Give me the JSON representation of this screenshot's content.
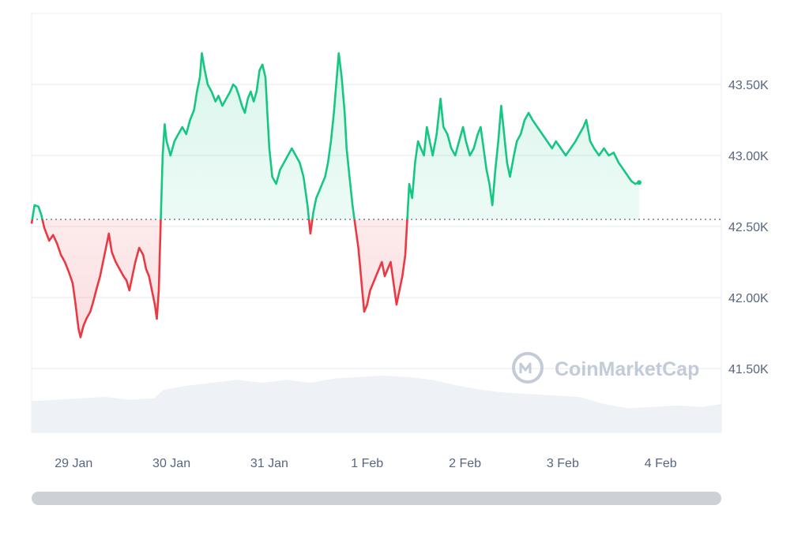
{
  "watermark": {
    "text": "CoinMarketCap"
  },
  "chart_data": {
    "type": "area",
    "baseline": 42550,
    "ylim": [
      41050,
      44000
    ],
    "y_ticks": [
      41500,
      42000,
      42500,
      43000,
      43500
    ],
    "y_tick_labels": [
      "41.50K",
      "42.00K",
      "42.50K",
      "43.00K",
      "43.50K"
    ],
    "x_ticks": [
      0.43,
      1.43,
      2.43,
      3.43,
      4.43,
      5.43,
      6.43
    ],
    "x_tick_labels": [
      "29 Jan",
      "30 Jan",
      "31 Jan",
      "1 Feb",
      "2 Feb",
      "3 Feb",
      "4 Feb"
    ],
    "xlim": [
      0,
      7.05
    ],
    "grid": true,
    "colors": {
      "above": "#16c784",
      "below": "#ea3943",
      "volume": "#eef1f6",
      "grid": "#e6e9ee",
      "baseline": "#58667e"
    },
    "series": [
      {
        "values": [
          [
            0.0,
            42520
          ],
          [
            0.03,
            42650
          ],
          [
            0.07,
            42640
          ],
          [
            0.1,
            42580
          ],
          [
            0.13,
            42490
          ],
          [
            0.18,
            42400
          ],
          [
            0.22,
            42440
          ],
          [
            0.26,
            42380
          ],
          [
            0.3,
            42300
          ],
          [
            0.34,
            42250
          ],
          [
            0.38,
            42180
          ],
          [
            0.42,
            42100
          ],
          [
            0.45,
            41950
          ],
          [
            0.48,
            41780
          ],
          [
            0.5,
            41720
          ],
          [
            0.53,
            41800
          ],
          [
            0.56,
            41850
          ],
          [
            0.6,
            41900
          ],
          [
            0.63,
            41970
          ],
          [
            0.66,
            42050
          ],
          [
            0.7,
            42150
          ],
          [
            0.73,
            42250
          ],
          [
            0.76,
            42350
          ],
          [
            0.79,
            42450
          ],
          [
            0.82,
            42320
          ],
          [
            0.86,
            42250
          ],
          [
            0.9,
            42200
          ],
          [
            0.94,
            42150
          ],
          [
            0.97,
            42120
          ],
          [
            1.0,
            42050
          ],
          [
            1.03,
            42150
          ],
          [
            1.06,
            42250
          ],
          [
            1.1,
            42350
          ],
          [
            1.14,
            42300
          ],
          [
            1.17,
            42200
          ],
          [
            1.2,
            42150
          ],
          [
            1.23,
            42050
          ],
          [
            1.26,
            41950
          ],
          [
            1.28,
            41850
          ],
          [
            1.3,
            42050
          ],
          [
            1.32,
            42550
          ],
          [
            1.34,
            43000
          ],
          [
            1.36,
            43220
          ],
          [
            1.38,
            43100
          ],
          [
            1.42,
            43000
          ],
          [
            1.46,
            43100
          ],
          [
            1.5,
            43150
          ],
          [
            1.54,
            43200
          ],
          [
            1.58,
            43150
          ],
          [
            1.62,
            43250
          ],
          [
            1.66,
            43320
          ],
          [
            1.69,
            43450
          ],
          [
            1.72,
            43550
          ],
          [
            1.74,
            43720
          ],
          [
            1.77,
            43600
          ],
          [
            1.8,
            43500
          ],
          [
            1.84,
            43450
          ],
          [
            1.88,
            43380
          ],
          [
            1.91,
            43420
          ],
          [
            1.95,
            43350
          ],
          [
            1.99,
            43400
          ],
          [
            2.03,
            43450
          ],
          [
            2.06,
            43500
          ],
          [
            2.09,
            43480
          ],
          [
            2.12,
            43420
          ],
          [
            2.15,
            43350
          ],
          [
            2.18,
            43300
          ],
          [
            2.21,
            43400
          ],
          [
            2.24,
            43450
          ],
          [
            2.27,
            43380
          ],
          [
            2.3,
            43450
          ],
          [
            2.33,
            43600
          ],
          [
            2.36,
            43640
          ],
          [
            2.39,
            43550
          ],
          [
            2.41,
            43300
          ],
          [
            2.43,
            43050
          ],
          [
            2.46,
            42850
          ],
          [
            2.5,
            42800
          ],
          [
            2.54,
            42900
          ],
          [
            2.58,
            42950
          ],
          [
            2.62,
            43000
          ],
          [
            2.66,
            43050
          ],
          [
            2.7,
            43000
          ],
          [
            2.74,
            42950
          ],
          [
            2.78,
            42850
          ],
          [
            2.82,
            42650
          ],
          [
            2.85,
            42450
          ],
          [
            2.88,
            42600
          ],
          [
            2.91,
            42700
          ],
          [
            2.94,
            42750
          ],
          [
            2.97,
            42800
          ],
          [
            3.0,
            42850
          ],
          [
            3.03,
            42950
          ],
          [
            3.06,
            43100
          ],
          [
            3.09,
            43300
          ],
          [
            3.12,
            43550
          ],
          [
            3.14,
            43720
          ],
          [
            3.17,
            43550
          ],
          [
            3.2,
            43300
          ],
          [
            3.22,
            43050
          ],
          [
            3.25,
            42850
          ],
          [
            3.28,
            42650
          ],
          [
            3.3,
            42550
          ],
          [
            3.32,
            42450
          ],
          [
            3.34,
            42350
          ],
          [
            3.36,
            42200
          ],
          [
            3.38,
            42050
          ],
          [
            3.4,
            41900
          ],
          [
            3.43,
            41950
          ],
          [
            3.46,
            42050
          ],
          [
            3.49,
            42100
          ],
          [
            3.52,
            42150
          ],
          [
            3.55,
            42200
          ],
          [
            3.58,
            42250
          ],
          [
            3.61,
            42150
          ],
          [
            3.64,
            42200
          ],
          [
            3.67,
            42250
          ],
          [
            3.7,
            42100
          ],
          [
            3.73,
            41950
          ],
          [
            3.76,
            42050
          ],
          [
            3.79,
            42150
          ],
          [
            3.82,
            42300
          ],
          [
            3.84,
            42550
          ],
          [
            3.86,
            42800
          ],
          [
            3.89,
            42700
          ],
          [
            3.92,
            42950
          ],
          [
            3.95,
            43100
          ],
          [
            3.98,
            43050
          ],
          [
            4.01,
            43000
          ],
          [
            4.04,
            43200
          ],
          [
            4.07,
            43100
          ],
          [
            4.1,
            43000
          ],
          [
            4.14,
            43150
          ],
          [
            4.18,
            43400
          ],
          [
            4.21,
            43200
          ],
          [
            4.25,
            43150
          ],
          [
            4.29,
            43050
          ],
          [
            4.33,
            43000
          ],
          [
            4.37,
            43100
          ],
          [
            4.41,
            43200
          ],
          [
            4.44,
            43100
          ],
          [
            4.48,
            43000
          ],
          [
            4.52,
            43050
          ],
          [
            4.56,
            43150
          ],
          [
            4.59,
            43200
          ],
          [
            4.62,
            43050
          ],
          [
            4.65,
            42900
          ],
          [
            4.68,
            42800
          ],
          [
            4.71,
            42650
          ],
          [
            4.74,
            42900
          ],
          [
            4.77,
            43100
          ],
          [
            4.8,
            43350
          ],
          [
            4.83,
            43150
          ],
          [
            4.86,
            42950
          ],
          [
            4.89,
            42850
          ],
          [
            4.93,
            43000
          ],
          [
            4.96,
            43100
          ],
          [
            5.0,
            43150
          ],
          [
            5.04,
            43250
          ],
          [
            5.08,
            43300
          ],
          [
            5.12,
            43250
          ],
          [
            5.17,
            43200
          ],
          [
            5.22,
            43150
          ],
          [
            5.27,
            43100
          ],
          [
            5.32,
            43050
          ],
          [
            5.36,
            43100
          ],
          [
            5.41,
            43050
          ],
          [
            5.46,
            43000
          ],
          [
            5.51,
            43050
          ],
          [
            5.56,
            43100
          ],
          [
            5.6,
            43150
          ],
          [
            5.64,
            43200
          ],
          [
            5.67,
            43250
          ],
          [
            5.71,
            43100
          ],
          [
            5.75,
            43050
          ],
          [
            5.8,
            43000
          ],
          [
            5.85,
            43050
          ],
          [
            5.9,
            43000
          ],
          [
            5.95,
            43020
          ],
          [
            6.0,
            42950
          ],
          [
            6.05,
            42900
          ],
          [
            6.1,
            42850
          ],
          [
            6.13,
            42820
          ],
          [
            6.17,
            42800
          ],
          [
            6.21,
            42810
          ]
        ]
      }
    ],
    "volume": [
      [
        0.0,
        41270
      ],
      [
        0.25,
        41280
      ],
      [
        0.5,
        41290
      ],
      [
        0.75,
        41300
      ],
      [
        1.0,
        41280
      ],
      [
        1.25,
        41290
      ],
      [
        1.35,
        41350
      ],
      [
        1.6,
        41380
      ],
      [
        1.85,
        41400
      ],
      [
        2.1,
        41420
      ],
      [
        2.35,
        41400
      ],
      [
        2.6,
        41420
      ],
      [
        2.85,
        41400
      ],
      [
        3.1,
        41430
      ],
      [
        3.35,
        41440
      ],
      [
        3.6,
        41450
      ],
      [
        3.85,
        41440
      ],
      [
        4.1,
        41420
      ],
      [
        4.35,
        41380
      ],
      [
        4.6,
        41350
      ],
      [
        4.85,
        41330
      ],
      [
        5.1,
        41320
      ],
      [
        5.35,
        41310
      ],
      [
        5.6,
        41300
      ],
      [
        5.85,
        41250
      ],
      [
        6.1,
        41220
      ],
      [
        6.35,
        41230
      ],
      [
        6.6,
        41240
      ],
      [
        6.85,
        41230
      ],
      [
        7.05,
        41250
      ]
    ]
  }
}
